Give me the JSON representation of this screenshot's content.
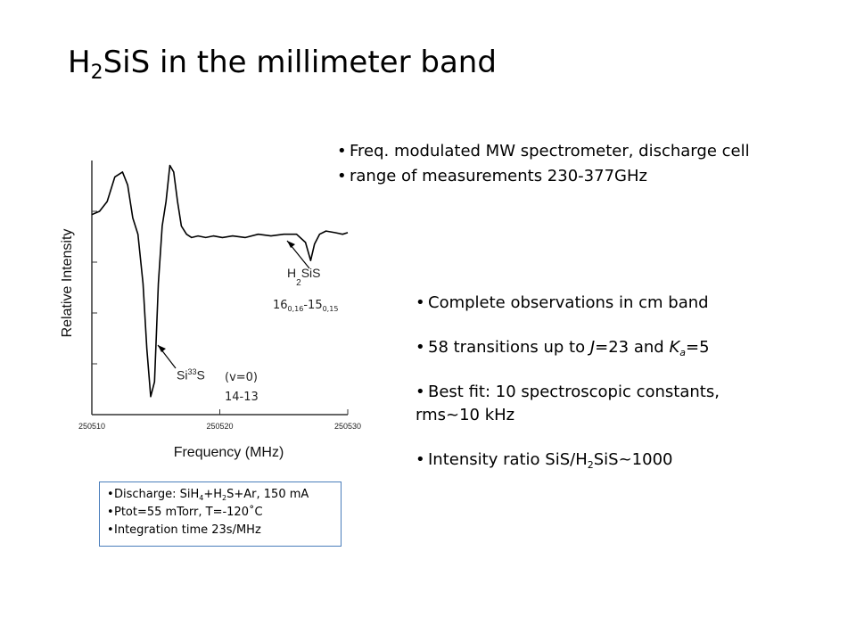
{
  "title": {
    "prefix": "H",
    "sub": "2",
    "rest": "SiS  in the millimeter band"
  },
  "top_bullets": [
    "Freq. modulated MW spectrometer, discharge cell",
    "range of measurements 230-377GHz"
  ],
  "right_bullets": {
    "b1": "Complete observations in cm band",
    "b2_pre": "58 transitions up to ",
    "b2_J": "J",
    "b2_mid": "=23 and ",
    "b2_K": "K",
    "b2_a": "a",
    "b2_post": "=5",
    "b3_line1": "Best fit: 10 spectroscopic constants,",
    "b3_line2": "rms~10 kHz",
    "b4_pre": "Intensity ratio SiS/H",
    "b4_sub": "2",
    "b4_post": "SiS~1000"
  },
  "box": {
    "l1_a": "Discharge: SiH",
    "l1_s1": "4",
    "l1_b": "+H",
    "l1_s2": "2",
    "l1_c": "S+Ar, 150 mA",
    "l2": "Ptot=55 mTorr, T=-120˚C",
    "l3": "Integration time 23s/MHz"
  },
  "annotations": {
    "h2sis_a": "H",
    "h2sis_b": "SiS",
    "h2sis_sub": "2",
    "h2sis_trans_a": "16",
    "h2sis_trans_s1": "0,16",
    "h2sis_trans_b": "-15",
    "h2sis_trans_s2": "0,15",
    "si33s_a": "Si",
    "si33s_sup": "33",
    "si33s_b": "S",
    "v0": "(v=0)",
    "trans2": "14-13"
  },
  "chart_data": {
    "type": "line",
    "xlabel": "Frequency (MHz)",
    "ylabel": "Relative Intensity",
    "xticks": [
      250510,
      250520,
      250530
    ],
    "xtick_labels": [
      "250510",
      "250520",
      "250530"
    ],
    "xlim": [
      250510,
      250530
    ],
    "ylim": [
      -1.1,
      0.45
    ],
    "series": [
      {
        "x": [
          250510.0,
          250510.6,
          250511.2,
          250511.8,
          250512.4,
          250512.8,
          250513.2,
          250513.6,
          250514.0,
          250514.3,
          250514.6,
          250514.9,
          250515.2,
          250515.5,
          250515.8,
          250516.1,
          250516.4,
          250516.7,
          250517.0,
          250517.4,
          250517.8,
          250518.3,
          250518.9,
          250519.5,
          250520.2,
          250521.0,
          250522.0,
          250523.0,
          250524.0,
          250525.0,
          250526.0,
          250526.7,
          250527.1,
          250527.4,
          250527.8,
          250528.3,
          250529.0,
          250529.6,
          250530.0
        ],
        "y": [
          0.12,
          0.14,
          0.2,
          0.35,
          0.38,
          0.3,
          0.1,
          0.0,
          -0.3,
          -0.7,
          -0.99,
          -0.9,
          -0.3,
          0.05,
          0.2,
          0.42,
          0.38,
          0.2,
          0.05,
          0.0,
          -0.02,
          -0.01,
          -0.02,
          -0.01,
          -0.02,
          -0.01,
          -0.02,
          0.0,
          -0.01,
          0.0,
          0.0,
          -0.05,
          -0.16,
          -0.06,
          0.0,
          0.02,
          0.01,
          0.0,
          0.01
        ]
      }
    ]
  }
}
